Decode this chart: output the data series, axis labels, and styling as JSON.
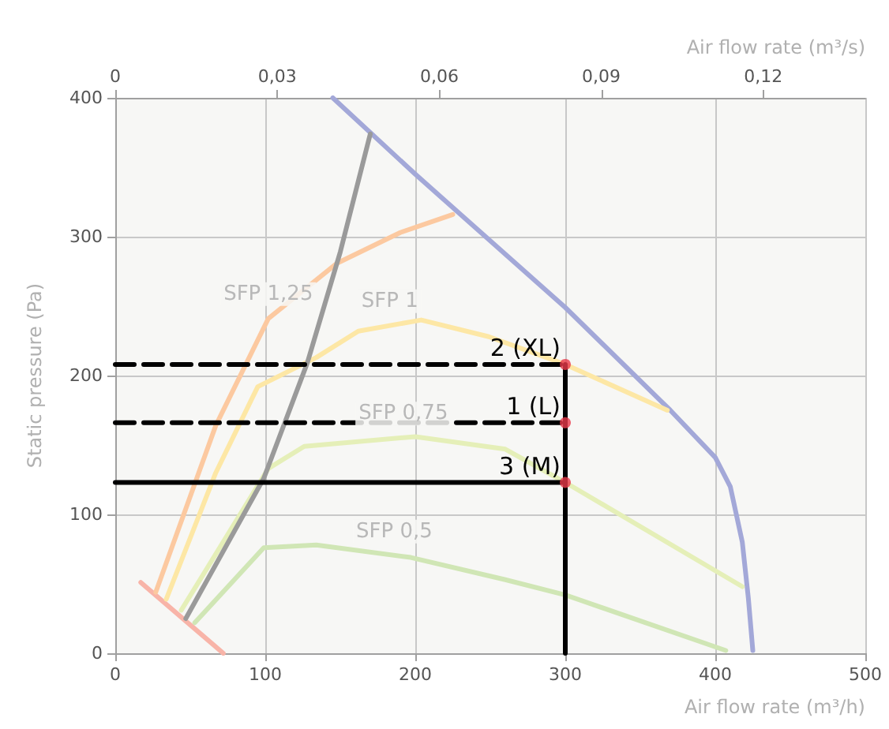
{
  "chart_data": {
    "type": "line",
    "xlabel": "Air flow rate (m³/h)",
    "x2label": "Air flow rate (m³/s)",
    "ylabel": "Static pressure (Pa)",
    "xlim": [
      0,
      500
    ],
    "xticks": [
      0,
      100,
      200,
      300,
      400,
      500
    ],
    "x2lim": [
      0,
      0.13889
    ],
    "x2ticks": [
      {
        "value": 0,
        "label": "0"
      },
      {
        "value": 0.03,
        "label": "0,03"
      },
      {
        "value": 0.06,
        "label": "0,06"
      },
      {
        "value": 0.09,
        "label": "0,09"
      },
      {
        "value": 0.12,
        "label": "0,12"
      }
    ],
    "ylim": [
      0,
      400
    ],
    "yticks": [
      0,
      100,
      200,
      300,
      400
    ],
    "grid": true,
    "marker": "none",
    "series": [
      {
        "color": "#a3a8d8",
        "x": [
          145,
          200,
          300,
          370,
          400,
          410,
          418,
          422,
          425
        ],
        "values": [
          400,
          345,
          249,
          175,
          141,
          120,
          80,
          40,
          2
        ]
      },
      {
        "color": "#f8b4a8",
        "x": [
          17,
          72
        ],
        "values": [
          51,
          0
        ]
      },
      {
        "color": "#fcc9a0",
        "x": [
          27,
          67,
          102,
          148,
          190,
          225
        ],
        "values": [
          44,
          164,
          241,
          281,
          303,
          316
        ]
      },
      {
        "color": "#fde7a5",
        "x": [
          34,
          67,
          95,
          134,
          162,
          204,
          249,
          300,
          368
        ],
        "values": [
          39,
          130,
          192,
          213,
          232,
          240,
          228,
          208,
          175
        ]
      },
      {
        "color": "#e5efb8",
        "x": [
          44,
          102,
          126,
          200,
          260,
          300,
          418
        ],
        "values": [
          31,
          133,
          149,
          156,
          147,
          123,
          48
        ]
      },
      {
        "color": "#d0e6b5",
        "x": [
          53,
          99,
          134,
          197,
          260,
          300,
          407
        ],
        "values": [
          22,
          76,
          78,
          69,
          53,
          42,
          2
        ]
      },
      {
        "color": "#9a9a9a",
        "x": [
          47,
          99,
          128,
          150,
          170
        ],
        "values": [
          25,
          126,
          209,
          289,
          374
        ]
      },
      {
        "color": "#000000",
        "line_style": "dashed",
        "x": [
          0,
          300
        ],
        "values": [
          208,
          208
        ]
      },
      {
        "color": "#000000",
        "line_style": "dashed",
        "x": [
          0,
          300
        ],
        "values": [
          166,
          166
        ]
      },
      {
        "color": "#000000",
        "line_style": "solid",
        "x": [
          0,
          300
        ],
        "values": [
          123,
          123
        ]
      },
      {
        "color": "#000000",
        "line_style": "solid",
        "x": [
          300,
          300
        ],
        "values": [
          0,
          208
        ]
      },
      {
        "type": "scatter",
        "marker": "circle",
        "color": "#e8394a",
        "x": [
          300,
          300,
          300
        ],
        "values": [
          208,
          166,
          123
        ]
      }
    ],
    "annotations": [
      {
        "text": "SFP 1,25",
        "x": 102,
        "y": 241
      },
      {
        "text": "SFP 1",
        "x": 183,
        "y": 236
      },
      {
        "text": "SFP 0,75",
        "x": 192,
        "y": 155
      },
      {
        "text": "SFP 0,5",
        "x": 186,
        "y": 70
      },
      {
        "text": "2 (XL)",
        "x": 300,
        "y": 208
      },
      {
        "text": "1 (L)",
        "x": 300,
        "y": 166
      },
      {
        "text": "3 (M)",
        "x": 300,
        "y": 123
      }
    ]
  }
}
